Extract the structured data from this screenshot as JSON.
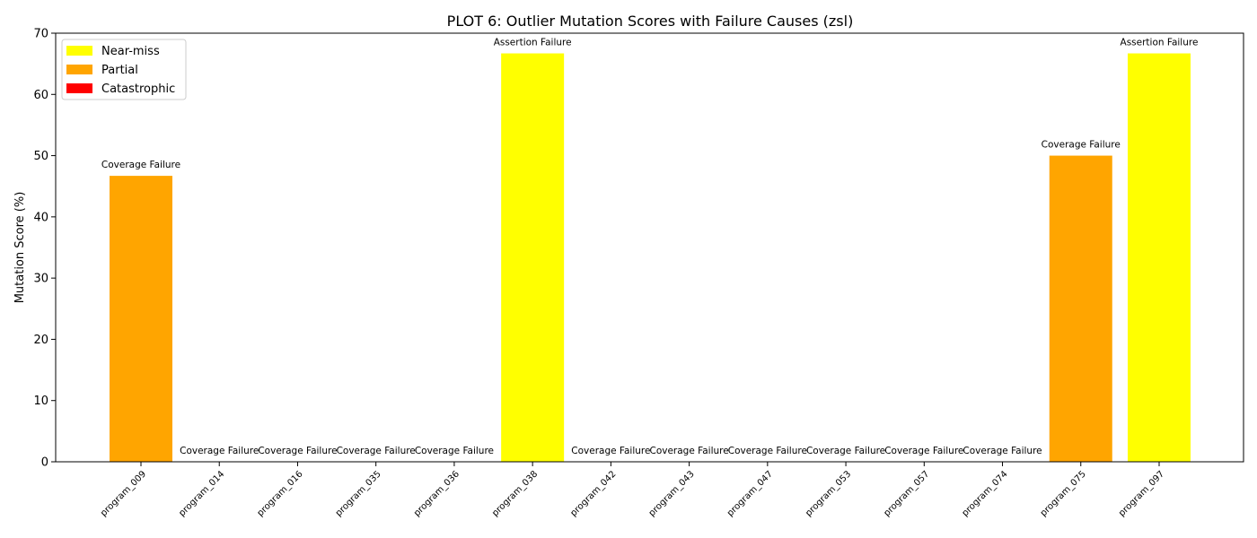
{
  "chart_data": {
    "type": "bar",
    "title": "PLOT 6: Outlier Mutation Scores with Failure Causes (zsl)",
    "xlabel": "",
    "ylabel": "Mutation Score (%)",
    "ylim": [
      0,
      70
    ],
    "yticks": [
      0,
      10,
      20,
      30,
      40,
      50,
      60,
      70
    ],
    "grid": false,
    "legend_position": "top-left",
    "categories": [
      "program_009",
      "program_014",
      "program_016",
      "program_035",
      "program_036",
      "program_038",
      "program_042",
      "program_043",
      "program_047",
      "program_053",
      "program_057",
      "program_074",
      "program_075",
      "program_097"
    ],
    "values": [
      46.7,
      0,
      0,
      0,
      0,
      66.7,
      0,
      0,
      0,
      0,
      0,
      0,
      50.0,
      66.7
    ],
    "severity": [
      "Partial",
      "Catastrophic",
      "Catastrophic",
      "Catastrophic",
      "Catastrophic",
      "Near-miss",
      "Catastrophic",
      "Catastrophic",
      "Catastrophic",
      "Catastrophic",
      "Catastrophic",
      "Catastrophic",
      "Partial",
      "Near-miss"
    ],
    "annotations": [
      "Coverage Failure",
      "Coverage Failure",
      "Coverage Failure",
      "Coverage Failure",
      "Coverage Failure",
      "Assertion Failure",
      "Coverage Failure",
      "Coverage Failure",
      "Coverage Failure",
      "Coverage Failure",
      "Coverage Failure",
      "Coverage Failure",
      "Coverage Failure",
      "Assertion Failure"
    ],
    "legend": [
      {
        "label": "Near-miss",
        "color": "#ffff00"
      },
      {
        "label": "Partial",
        "color": "#ffa500"
      },
      {
        "label": "Catastrophic",
        "color": "#ff0000"
      }
    ],
    "colors": {
      "Near-miss": "#ffff00",
      "Partial": "#ffa500",
      "Catastrophic": "#ff0000"
    }
  }
}
